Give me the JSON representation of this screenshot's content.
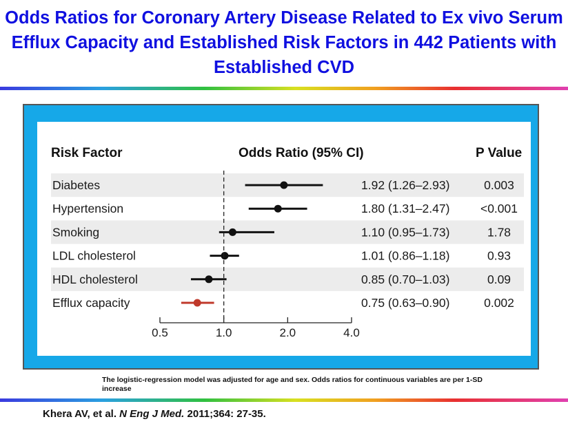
{
  "title": "Odds Ratios for Coronary Artery Disease Related to Ex vivo Serum Efflux Capacity and Established Risk Factors in 442 Patients with Established CVD",
  "note": "The logistic-regression model was adjusted for age and sex. Odds ratios for continuous variables are per 1-SD increase",
  "citation": {
    "authors": "Khera AV, et al. ",
    "journal": "N Eng J Med.",
    "details": " 2011;364: 27-35."
  },
  "colors": {
    "title": "#1010e0",
    "panel": "#16a8e8",
    "highlight": "#c0392b",
    "point": "#111111"
  },
  "chart_data": {
    "type": "forest",
    "headers": {
      "factor": "Risk Factor",
      "or": "Odds Ratio (95% CI)",
      "p": "P Value"
    },
    "xscale": "log",
    "xlim": [
      0.5,
      4.0
    ],
    "xticks": [
      0.5,
      1.0,
      2.0,
      4.0
    ],
    "xtick_labels": [
      "0.5",
      "1.0",
      "2.0",
      "4.0"
    ],
    "reference_line": 1.0,
    "rows": [
      {
        "factor": "Diabetes",
        "or": 1.92,
        "lo": 1.26,
        "hi": 2.93,
        "or_text": "1.92 (1.26–2.93)",
        "p": "0.003",
        "shaded": true,
        "highlight": false
      },
      {
        "factor": "Hypertension",
        "or": 1.8,
        "lo": 1.31,
        "hi": 2.47,
        "or_text": "1.80 (1.31–2.47)",
        "p": "<0.001",
        "shaded": false,
        "highlight": false
      },
      {
        "factor": "Smoking",
        "or": 1.1,
        "lo": 0.95,
        "hi": 1.73,
        "or_text": "1.10 (0.95–1.73)",
        "p": "1.78",
        "shaded": true,
        "highlight": false
      },
      {
        "factor": "LDL cholesterol",
        "or": 1.01,
        "lo": 0.86,
        "hi": 1.18,
        "or_text": "1.01 (0.86–1.18)",
        "p": "0.93",
        "shaded": false,
        "highlight": false
      },
      {
        "factor": "HDL cholesterol",
        "or": 0.85,
        "lo": 0.7,
        "hi": 1.03,
        "or_text": "0.85 (0.70–1.03)",
        "p": "0.09",
        "shaded": true,
        "highlight": false
      },
      {
        "factor": "Efflux capacity",
        "or": 0.75,
        "lo": 0.63,
        "hi": 0.9,
        "or_text": "0.75 (0.63–0.90)",
        "p": "0.002",
        "shaded": false,
        "highlight": true
      }
    ]
  }
}
